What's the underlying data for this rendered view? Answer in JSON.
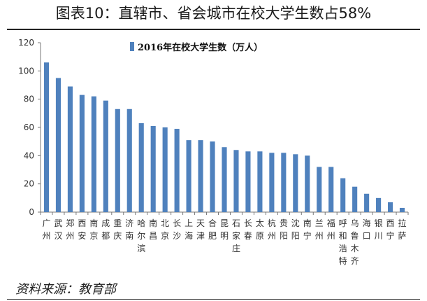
{
  "page": {
    "header": "图表10：直辖市、省会城市在校大学生数占58%",
    "source": "资料来源：教育部"
  },
  "chart_data": {
    "type": "bar",
    "title": "",
    "xlabel": "",
    "ylabel": "",
    "ylim": [
      0,
      120
    ],
    "yticks": [
      0,
      20,
      40,
      60,
      80,
      100,
      120
    ],
    "grid": false,
    "legend": "top-center",
    "bar_color": "#4f81bd",
    "series": [
      {
        "name": "2016年在校大学生数（万人）",
        "values": [
          106,
          95,
          89,
          83,
          82,
          79,
          73,
          73,
          63,
          61,
          60,
          59,
          51,
          51,
          50,
          46,
          44,
          43,
          43,
          42,
          42,
          41,
          40,
          32,
          32,
          24,
          18,
          13,
          10,
          7,
          3
        ]
      }
    ],
    "categories": [
      "广州",
      "武汉",
      "郑州",
      "西安",
      "南京",
      "成都",
      "重庆",
      "济南",
      "哈尔滨",
      "南昌",
      "北京",
      "长沙",
      "上海",
      "天津",
      "合肥",
      "昆明",
      "石家庄",
      "长春",
      "太原",
      "杭州",
      "贵阳",
      "沈阳",
      "南宁",
      "兰州",
      "福州",
      "呼和浩特",
      "乌鲁木齐",
      "海口",
      "银川",
      "西宁",
      "拉萨"
    ]
  }
}
